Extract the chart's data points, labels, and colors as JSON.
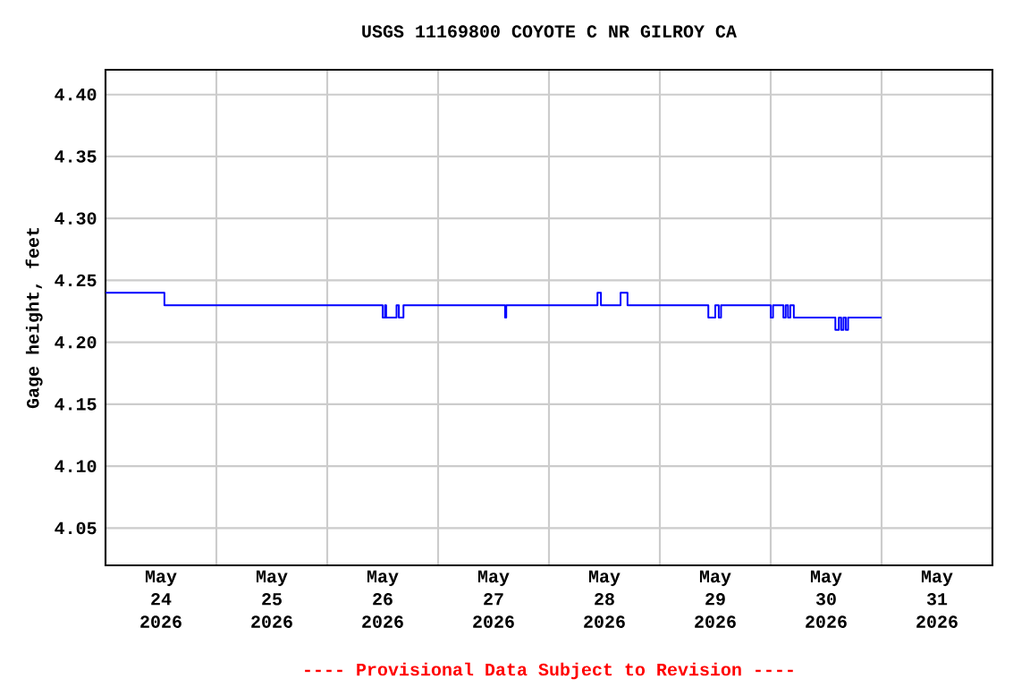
{
  "chart_data": {
    "type": "step",
    "title": "USGS 11169800 COYOTE C NR GILROY CA",
    "ylabel": "Gage height, feet",
    "annotations": [
      "---- Provisional Data Subject to Revision ----"
    ],
    "xlim": [
      "2026-05-24T00:00",
      "2026-06-01T00:00"
    ],
    "xticks": [
      {
        "value": "2026-05-24T12:00",
        "label": "May 24 2026"
      },
      {
        "value": "2026-05-25T12:00",
        "label": "May 25 2026"
      },
      {
        "value": "2026-05-26T12:00",
        "label": "May 26 2026"
      },
      {
        "value": "2026-05-27T12:00",
        "label": "May 27 2026"
      },
      {
        "value": "2026-05-28T12:00",
        "label": "May 28 2026"
      },
      {
        "value": "2026-05-29T12:00",
        "label": "May 29 2026"
      },
      {
        "value": "2026-05-30T12:00",
        "label": "May 30 2026"
      },
      {
        "value": "2026-05-31T12:00",
        "label": "May 31 2026"
      },
      {
        "value": "2026-05-25T00:00",
        "label": null
      },
      {
        "value": "2026-05-26T00:00",
        "label": null
      },
      {
        "value": "2026-05-27T00:00",
        "label": null
      },
      {
        "value": "2026-05-28T00:00",
        "label": null
      },
      {
        "value": "2026-05-29T00:00",
        "label": null
      },
      {
        "value": "2026-05-30T00:00",
        "label": null
      },
      {
        "value": "2026-05-31T00:00",
        "label": null
      }
    ],
    "ylim": [
      4.02,
      4.42
    ],
    "yticks": [
      {
        "value": 4.05,
        "label": "4.05"
      },
      {
        "value": 4.1,
        "label": "4.10"
      },
      {
        "value": 4.15,
        "label": "4.15"
      },
      {
        "value": 4.2,
        "label": "4.20"
      },
      {
        "value": 4.25,
        "label": "4.25"
      },
      {
        "value": 4.3,
        "label": "4.30"
      },
      {
        "value": 4.35,
        "label": "4.35"
      },
      {
        "value": 4.4,
        "label": "4.40"
      }
    ],
    "grid": true,
    "series": [
      {
        "color": "#0000ff",
        "x": [
          "2026-05-24T00:00",
          "2026-05-24T12:45",
          "2026-05-26T12:00",
          "2026-05-26T12:30",
          "2026-05-26T12:45",
          "2026-05-26T15:00",
          "2026-05-26T15:30",
          "2026-05-26T16:30",
          "2026-05-27T14:30",
          "2026-05-27T14:45",
          "2026-05-28T10:30",
          "2026-05-28T11:15",
          "2026-05-28T15:30",
          "2026-05-28T17:00",
          "2026-05-29T10:30",
          "2026-05-29T12:00",
          "2026-05-29T12:45",
          "2026-05-29T13:15",
          "2026-05-30T00:00",
          "2026-05-30T00:30",
          "2026-05-30T02:45",
          "2026-05-30T03:15",
          "2026-05-30T03:45",
          "2026-05-30T04:15",
          "2026-05-30T05:00",
          "2026-05-30T14:00",
          "2026-05-30T14:45",
          "2026-05-30T15:15",
          "2026-05-30T15:45",
          "2026-05-30T16:15",
          "2026-05-30T16:45",
          "2026-05-31T00:00"
        ],
        "values": [
          4.24,
          4.23,
          4.22,
          4.23,
          4.22,
          4.23,
          4.22,
          4.23,
          4.22,
          4.23,
          4.24,
          4.23,
          4.24,
          4.23,
          4.22,
          4.23,
          4.22,
          4.23,
          4.22,
          4.23,
          4.22,
          4.23,
          4.22,
          4.23,
          4.22,
          4.21,
          4.22,
          4.21,
          4.22,
          4.21,
          4.22,
          4.22
        ]
      }
    ]
  }
}
